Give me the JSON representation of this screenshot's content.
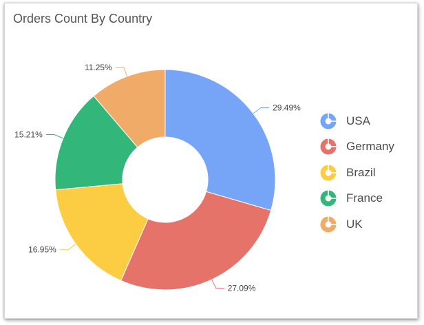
{
  "chart_data": {
    "type": "pie",
    "variant": "donut",
    "title": "Orders Count By Country",
    "categories": [
      "USA",
      "Germany",
      "Brazil",
      "France",
      "UK"
    ],
    "values": [
      29.49,
      27.09,
      16.95,
      15.21,
      11.25
    ],
    "labels": [
      "29.49%",
      "27.09%",
      "16.95%",
      "15.21%",
      "11.25%"
    ],
    "colors": [
      "#76a4f7",
      "#e5736a",
      "#fccc42",
      "#33b679",
      "#f0ab68"
    ],
    "legend_position": "right"
  },
  "legend_icon": "donut-icon"
}
